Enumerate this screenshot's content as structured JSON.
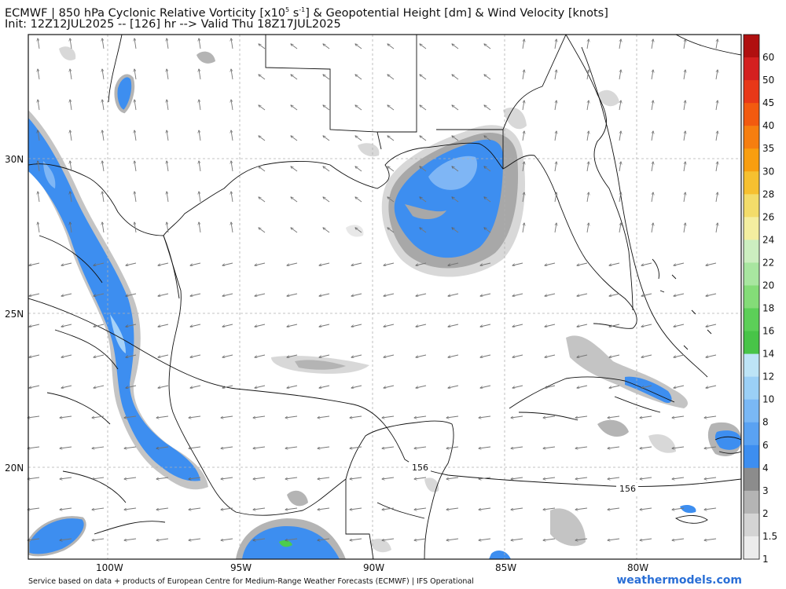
{
  "header": {
    "title_model": "ECMWF",
    "title_sep": " | ",
    "title_field": "850 hPa Cyclonic Relative Vorticity [x10",
    "title_exp1": "5",
    "title_unit_mid": " s",
    "title_exp2": "-1",
    "title_rest": "] & Geopotential Height [dm] & Wind Velocity [knots]",
    "subtitle": "Init: 12Z12JUL2025 -- [126] hr --> Valid Thu 18Z17JUL2025"
  },
  "map": {
    "lon_labels": [
      "100W",
      "95W",
      "90W",
      "85W",
      "80W"
    ],
    "lat_labels": [
      "30N",
      "25N",
      "20N"
    ],
    "contour_labels": [
      "156",
      "156"
    ],
    "colors": {
      "vorticity_blue": "#3d8ef0",
      "vorticity_light_blue": "#7fb6f5",
      "vorticity_green": "#4ccc4c",
      "gray_dark": "#8c8c8c",
      "gray_mid": "#b4b4b4",
      "gray_light": "#d8d8d8",
      "gray_faint": "#ebebeb"
    }
  },
  "colorbar": {
    "labels": [
      "60",
      "50",
      "45",
      "40",
      "35",
      "30",
      "28",
      "26",
      "24",
      "22",
      "20",
      "18",
      "16",
      "14",
      "12",
      "10",
      "8",
      "6",
      "4",
      "3",
      "2",
      "1.5",
      "1"
    ],
    "colors": [
      "#b01010",
      "#d42020",
      "#e83818",
      "#f25a10",
      "#f67e10",
      "#f89e10",
      "#f6c030",
      "#f3dc6a",
      "#f4eea0",
      "#cceec0",
      "#a8e6a0",
      "#84dc78",
      "#5ccf58",
      "#48c448",
      "#bde4f6",
      "#9bd0f6",
      "#7ab8f5",
      "#5aa2f2",
      "#3d8ef0",
      "#8c8c8c",
      "#b4b4b4",
      "#d4d4d4",
      "#ececec"
    ]
  },
  "footer": {
    "credit": "Service based on data + products of European Centre for Medium-Range Weather Forecasts (ECMWF) | IFS Operational",
    "site": "weathermodels.com"
  }
}
